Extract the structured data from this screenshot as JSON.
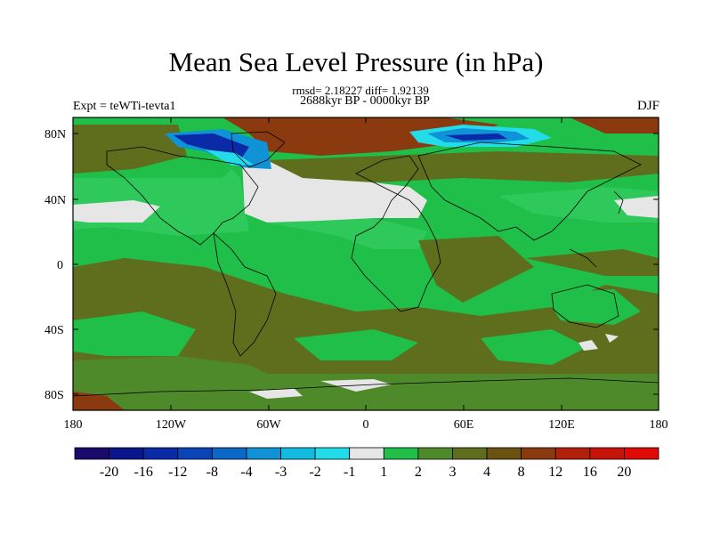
{
  "title": "Mean Sea Level Pressure (in hPa)",
  "stats": "rmsd= 2.18227 diff= 1.92139",
  "period": "2688kyr BP - 0000kyr BP",
  "experiment": "Expt = teWTi-tevta1",
  "season": "DJF",
  "lat_labels": [
    "80N",
    "40N",
    "0",
    "40S",
    "80S"
  ],
  "lon_labels": [
    "180",
    "120W",
    "60W",
    "0",
    "60E",
    "120E",
    "180"
  ],
  "colorbar": {
    "labels": [
      "-20",
      "-16",
      "-12",
      "-8",
      "-4",
      "-3",
      "-2",
      "-1",
      "1",
      "2",
      "3",
      "4",
      "8",
      "12",
      "16",
      "20"
    ],
    "colors": [
      "#1a0a6b",
      "#0b168e",
      "#0a2aa8",
      "#0a44b8",
      "#0c68c8",
      "#1092d6",
      "#12bce0",
      "#22dcea",
      "#e6e6e6",
      "#1fbf4a",
      "#4f8a2a",
      "#5f6e1c",
      "#6c5212",
      "#8a3a0e",
      "#b0200a",
      "#c81408",
      "#e00a06"
    ]
  },
  "colors": {
    "field_base": "#1fbf4a",
    "field_light": "#2ec95a",
    "olive": "#5f6e1c",
    "olive_dark": "#4f8a2a",
    "brown": "#8a3a0e",
    "grey": "#e6e6e6",
    "blue_deep": "#0a2aa8",
    "blue_mid": "#1092d6",
    "cyan": "#22dcea"
  }
}
